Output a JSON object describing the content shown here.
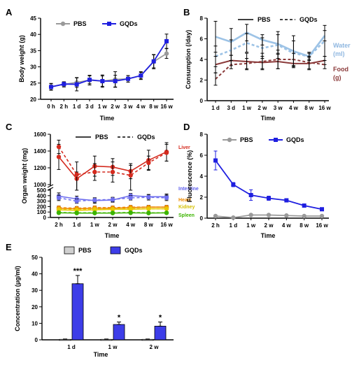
{
  "chart_data": [
    {
      "panel": "A",
      "type": "line",
      "xlabel": "Time",
      "ylabel": "Body weight (g)",
      "x": [
        "0 h",
        "2 h",
        "1 d",
        "3 d",
        "1 w",
        "2 w",
        "3 w",
        "4 w",
        "8 w",
        "16 w"
      ],
      "ylim": [
        20,
        45
      ],
      "yticks": [
        20,
        25,
        30,
        35,
        40,
        45
      ],
      "legend": "top-left",
      "series": [
        {
          "name": "PBS",
          "color": "#9a9a9a",
          "marker": "circle",
          "values": [
            23.9,
            24.6,
            25.2,
            25.9,
            25.6,
            26.1,
            26.3,
            27.3,
            31.6,
            34.1
          ],
          "err": [
            1.0,
            0.8,
            1.5,
            1.5,
            1.6,
            2.4,
            1.0,
            1.2,
            2.2,
            1.5
          ]
        },
        {
          "name": "GQDs",
          "color": "#1f1fe0",
          "marker": "square",
          "values": [
            23.8,
            24.7,
            24.6,
            26.0,
            25.6,
            25.6,
            26.3,
            27.3,
            31.7,
            37.9
          ],
          "err": [
            1.0,
            0.6,
            2.0,
            1.2,
            1.9,
            1.8,
            1.0,
            1.0,
            2.0,
            2.2
          ]
        }
      ]
    },
    {
      "panel": "B",
      "type": "line",
      "xlabel": "Time",
      "ylabel": "Consumption (/day)",
      "x": [
        "1 d",
        "3 d",
        "1 w",
        "2 w",
        "3 w",
        "4 w",
        "8 w",
        "16 w"
      ],
      "ylim": [
        0,
        8
      ],
      "yticks": [
        0,
        2,
        4,
        6,
        8
      ],
      "legend": "top",
      "legend_entries": [
        {
          "name": "PBS",
          "dash": false
        },
        {
          "name": "GQDs",
          "dash": true
        }
      ],
      "series": [
        {
          "name": "Water",
          "color": "#9dc3e6",
          "dash": false,
          "values": [
            6.2,
            5.7,
            6.6,
            5.9,
            5.5,
            4.8,
            4.3,
            6.3
          ],
          "err": [
            1.5,
            1.3,
            0.8,
            0.5,
            0.9,
            1.5,
            0.4,
            0.5
          ]
        },
        {
          "name": "Water",
          "color": "#9dc3e6",
          "dash": true,
          "values": [
            4.3,
            4.9,
            5.6,
            5.1,
            5.4,
            4.6,
            4.3,
            5.8
          ],
          "err": [
            1.0,
            1.0,
            0.9,
            1.0,
            1.3,
            1.2,
            0.3,
            1.5
          ]
        },
        {
          "name": "Food",
          "color": "#8b3a3a",
          "dash": false,
          "values": [
            3.5,
            3.9,
            3.8,
            3.7,
            3.8,
            3.6,
            3.6,
            3.9
          ],
          "err": [
            0.8,
            0.5,
            0.8,
            0.6,
            0.7,
            0.4,
            0.6,
            0.4
          ]
        },
        {
          "name": "Food",
          "color": "#8b3a3a",
          "dash": true,
          "values": [
            2.1,
            3.5,
            3.6,
            3.8,
            4.0,
            4.0,
            3.7,
            3.5
          ],
          "err": [
            0.6,
            0.4,
            0.5,
            0.8,
            0.9,
            0.6,
            0.6,
            0.4
          ]
        }
      ],
      "annotations": [
        {
          "text": "Water",
          "color": "#8fb7e0",
          "series": "Water"
        },
        {
          "text": "(ml)",
          "color": "#8fb7e0",
          "series": "Water-unit"
        },
        {
          "text": "Food",
          "color": "#8b3a3a",
          "series": "Food"
        },
        {
          "text": "(g)",
          "color": "#8b3a3a",
          "series": "Food-unit"
        }
      ]
    },
    {
      "panel": "C",
      "type": "line",
      "xlabel": "Time",
      "ylabel": "Organ weight (mg)",
      "x": [
        "2 h",
        "1 d",
        "1 w",
        "2 w",
        "4 w",
        "8 w",
        "16 w"
      ],
      "ylim": [
        0,
        1600
      ],
      "yticks": [
        0,
        100,
        200,
        300,
        400,
        500,
        1000,
        1200,
        1400,
        1600
      ],
      "axis_break": [
        500,
        1000
      ],
      "legend": "top",
      "legend_entries": [
        {
          "name": "PBS",
          "dash": false
        },
        {
          "name": "GQDs",
          "dash": true
        }
      ],
      "series": [
        {
          "name": "Liver",
          "color": "#d42a1e",
          "dash": false,
          "values": [
            1330,
            1070,
            1220,
            1210,
            1160,
            1290,
            1390
          ],
          "err": [
            150,
            80,
            120,
            100,
            90,
            120,
            110
          ]
        },
        {
          "name": "Liver",
          "color": "#d42a1e",
          "dash": true,
          "values": [
            1450,
            1120,
            1150,
            1150,
            1110,
            1260,
            1380
          ],
          "err": [
            80,
            150,
            100,
            120,
            120,
            80,
            100
          ]
        },
        {
          "name": "Intestine",
          "color": "#7070ee",
          "dash": false,
          "values": [
            390,
            340,
            310,
            320,
            400,
            380,
            380
          ],
          "err": [
            60,
            50,
            50,
            40,
            40,
            40,
            50
          ]
        },
        {
          "name": "Intestine",
          "color": "#7070ee",
          "dash": true,
          "values": [
            360,
            300,
            320,
            330,
            360,
            370,
            360
          ],
          "err": [
            50,
            40,
            40,
            40,
            40,
            50,
            50
          ]
        },
        {
          "name": "Heart",
          "color": "#ee8a00",
          "dash": false,
          "values": [
            170,
            160,
            170,
            170,
            180,
            190,
            190
          ],
          "err": [
            30,
            30,
            20,
            30,
            30,
            30,
            30
          ]
        },
        {
          "name": "Heart",
          "color": "#ee8a00",
          "dash": true,
          "values": [
            180,
            170,
            180,
            180,
            190,
            190,
            190
          ],
          "err": [
            30,
            30,
            30,
            30,
            30,
            30,
            30
          ]
        },
        {
          "name": "Kidney",
          "color": "#e8c800",
          "dash": false,
          "values": [
            140,
            130,
            140,
            150,
            150,
            160,
            160
          ],
          "err": [
            20,
            20,
            20,
            20,
            20,
            20,
            20
          ]
        },
        {
          "name": "Kidney",
          "color": "#e8c800",
          "dash": true,
          "values": [
            150,
            140,
            150,
            150,
            160,
            160,
            160
          ],
          "err": [
            20,
            20,
            20,
            20,
            20,
            20,
            20
          ]
        },
        {
          "name": "Spleen",
          "color": "#3cb400",
          "dash": false,
          "values": [
            85,
            80,
            80,
            80,
            85,
            80,
            85
          ],
          "err": [
            15,
            15,
            15,
            15,
            15,
            15,
            15
          ]
        },
        {
          "name": "Spleen",
          "color": "#3cb400",
          "dash": true,
          "values": [
            90,
            85,
            85,
            85,
            90,
            85,
            85
          ],
          "err": [
            15,
            15,
            15,
            15,
            15,
            15,
            15
          ]
        }
      ],
      "annotations": [
        {
          "text": "Liver",
          "color": "#d42a1e"
        },
        {
          "text": "Intestine",
          "color": "#6060ee"
        },
        {
          "text": "Heart",
          "color": "#ee8a00"
        },
        {
          "text": "Kidney",
          "color": "#d6c000"
        },
        {
          "text": "Spleen",
          "color": "#3cb400"
        }
      ]
    },
    {
      "panel": "D",
      "type": "line",
      "xlabel": "Time",
      "ylabel": "Fluorescence (%)",
      "x": [
        "2 h",
        "1 d",
        "1 w",
        "2 w",
        "4 w",
        "8 w",
        "16 w"
      ],
      "ylim": [
        0,
        8
      ],
      "yticks": [
        0,
        2,
        4,
        6,
        8
      ],
      "legend": "top",
      "series": [
        {
          "name": "PBS",
          "color": "#9a9a9a",
          "marker": "circle",
          "values": [
            0.2,
            0.05,
            0.3,
            0.3,
            0.25,
            0.2,
            0.2
          ],
          "err": [
            0.1,
            0.05,
            0.1,
            0.1,
            0.1,
            0.1,
            0.1
          ]
        },
        {
          "name": "GQDs",
          "color": "#1f1fe0",
          "marker": "square",
          "values": [
            5.5,
            3.2,
            2.2,
            1.9,
            1.7,
            1.2,
            0.85
          ],
          "err": [
            0.9,
            0.2,
            0.5,
            0.2,
            0.1,
            0.1,
            0.05
          ]
        }
      ]
    },
    {
      "panel": "E",
      "type": "bar",
      "xlabel": "Time",
      "ylabel": "Concentration (μg/ml)",
      "categories": [
        "1 d",
        "1 w",
        "2 w"
      ],
      "ylim": [
        0,
        50
      ],
      "yticks": [
        0,
        10,
        20,
        30,
        40,
        50
      ],
      "legend": "top",
      "series": [
        {
          "name": "PBS",
          "color": "#d0d0d0",
          "values": [
            0.3,
            0.3,
            0.3
          ],
          "err": [
            0.2,
            0.2,
            0.2
          ]
        },
        {
          "name": "GQDs",
          "color": "#3d3de8",
          "values": [
            34,
            9.3,
            8.3
          ],
          "err": [
            5,
            1.5,
            2.5
          ]
        }
      ],
      "significance": [
        "***",
        "*",
        "*"
      ]
    }
  ]
}
